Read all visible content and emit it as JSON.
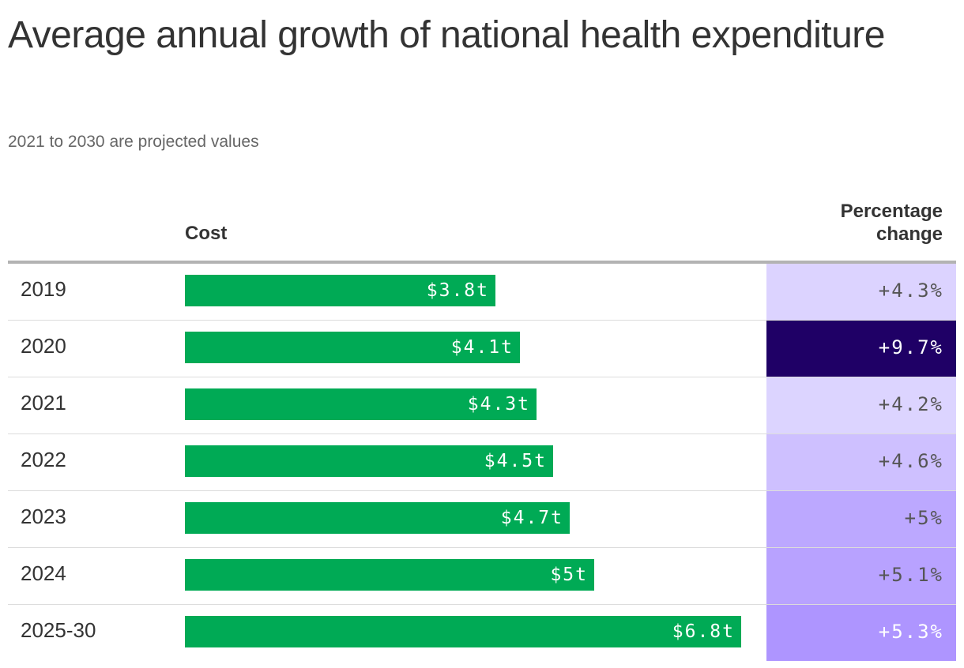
{
  "chart_data": {
    "type": "table",
    "title": "Average annual growth of national health expenditure",
    "subtitle": "2021 to 2030 are projected values",
    "columns": {
      "cost": "Cost",
      "percentage_change": "Percentage change"
    },
    "cost_unit": "trillion USD",
    "rows": [
      {
        "label": "2019",
        "cost": 3.8,
        "cost_label": "$3.8t",
        "pct": 4.3,
        "pct_label": "+4.3%",
        "color": "#dcd3ff",
        "text_color": "#555555"
      },
      {
        "label": "2020",
        "cost": 4.1,
        "cost_label": "$4.1t",
        "pct": 9.7,
        "pct_label": "+9.7%",
        "color": "#1f0066",
        "text_color": "#ffffff"
      },
      {
        "label": "2021",
        "cost": 4.3,
        "cost_label": "$4.3t",
        "pct": 4.2,
        "pct_label": "+4.2%",
        "color": "#dcd4ff",
        "text_color": "#555555"
      },
      {
        "label": "2022",
        "cost": 4.5,
        "cost_label": "$4.5t",
        "pct": 4.6,
        "pct_label": "+4.6%",
        "color": "#cec0ff",
        "text_color": "#555555"
      },
      {
        "label": "2023",
        "cost": 4.7,
        "cost_label": "$4.7t",
        "pct": 5.0,
        "pct_label": "+5%",
        "color": "#bca8ff",
        "text_color": "#555555"
      },
      {
        "label": "2024",
        "cost": 5.0,
        "cost_label": "$5t",
        "pct": 5.1,
        "pct_label": "+5.1%",
        "color": "#b8a2ff",
        "text_color": "#555555"
      },
      {
        "label": "2025-30",
        "cost": 6.8,
        "cost_label": "$6.8t",
        "pct": 5.3,
        "pct_label": "+5.3%",
        "color": "#ae95ff",
        "text_color": "#ffffff"
      }
    ],
    "bar_color": "#00aa55",
    "xlim": [
      0,
      6.8
    ]
  }
}
